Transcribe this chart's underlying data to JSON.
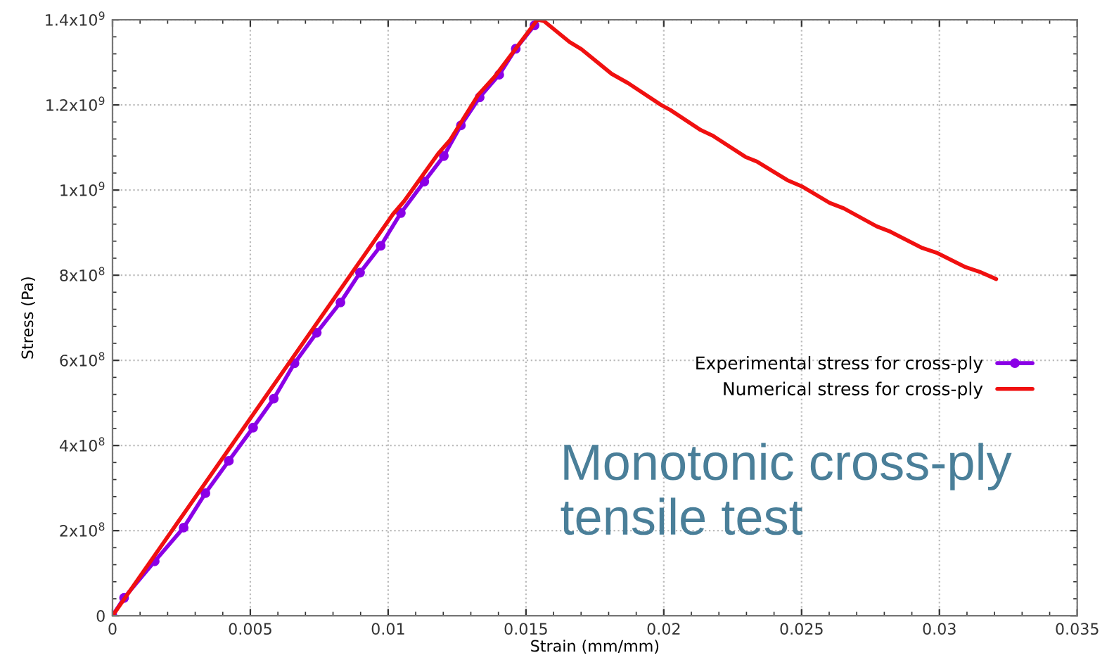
{
  "chart_data": {
    "type": "line",
    "xlabel": "Strain (mm/mm)",
    "ylabel": "Stress (Pa)",
    "xlim": [
      0,
      0.035
    ],
    "xticks": [
      0,
      0.005,
      0.01,
      0.015,
      0.02,
      0.025,
      0.03,
      0.035
    ],
    "ylim": [
      0,
      1400000000
    ],
    "yticks": [
      0,
      {
        "value": 200000000,
        "label": "2x10$^{8}$"
      },
      {
        "value": 400000000,
        "label": "4x10$^{8}$"
      },
      {
        "value": 600000000,
        "label": "6x10$^{8}$"
      },
      {
        "value": 800000000,
        "label": "8x10$^{8}$"
      },
      {
        "value": 1000000000,
        "label": "1x10$^{9}$"
      },
      {
        "value": 1200000000,
        "label": "1.2x10$^{9}$"
      },
      {
        "value": 1400000000,
        "label": "1.4x10$^{9}$"
      }
    ],
    "grid": true,
    "legend": "right",
    "line_style": "solid",
    "annotations": [
      "Monotonic cross-ply tensile test"
    ],
    "series": [
      {
        "name": "Experimental stress for cross-ply",
        "color": "#8b00e6",
        "marker": "circle",
        "x": [
          0,
          0.00042,
          0.00153,
          0.00258,
          0.00337,
          0.00422,
          0.0051,
          0.00585,
          0.0066,
          0.00741,
          0.00827,
          0.00898,
          0.00973,
          0.01046,
          0.01131,
          0.01202,
          0.01264,
          0.01332,
          0.01403,
          0.01463,
          0.01531
        ],
        "values": [
          0,
          42000000,
          128000000,
          207000000,
          288000000,
          364000000,
          442000000,
          510000000,
          593000000,
          665000000,
          736000000,
          806000000,
          869000000,
          946000000,
          1020000000,
          1080000000,
          1152000000,
          1218000000,
          1271000000,
          1332000000,
          1387000000
        ]
      },
      {
        "name": "Numerical stress for cross-ply",
        "color": "#f01010",
        "marker": "none",
        "x": [
          0,
          0.01017,
          0.01058,
          0.01182,
          0.01224,
          0.01327,
          0.01386,
          0.01539,
          0.01543,
          0.01565,
          0.01658,
          0.01701,
          0.01811,
          0.01871,
          0.0199,
          0.02024,
          0.02134,
          0.02177,
          0.02296,
          0.02338,
          0.02449,
          0.025,
          0.02602,
          0.02653,
          0.02772,
          0.02823,
          0.02934,
          0.02993,
          0.03095,
          0.03146,
          0.03206
        ],
        "values": [
          0,
          943000000,
          974000000,
          1086000000,
          1117000000,
          1224000000,
          1266000000,
          1398000000,
          1400000000,
          1397000000,
          1348000000,
          1331000000,
          1273000000,
          1251000000,
          1200000000,
          1188000000,
          1141000000,
          1128000000,
          1078000000,
          1067000000,
          1023000000,
          1009000000,
          970000000,
          957000000,
          915000000,
          902000000,
          865000000,
          852000000,
          819000000,
          808000000,
          791000000
        ]
      }
    ]
  }
}
